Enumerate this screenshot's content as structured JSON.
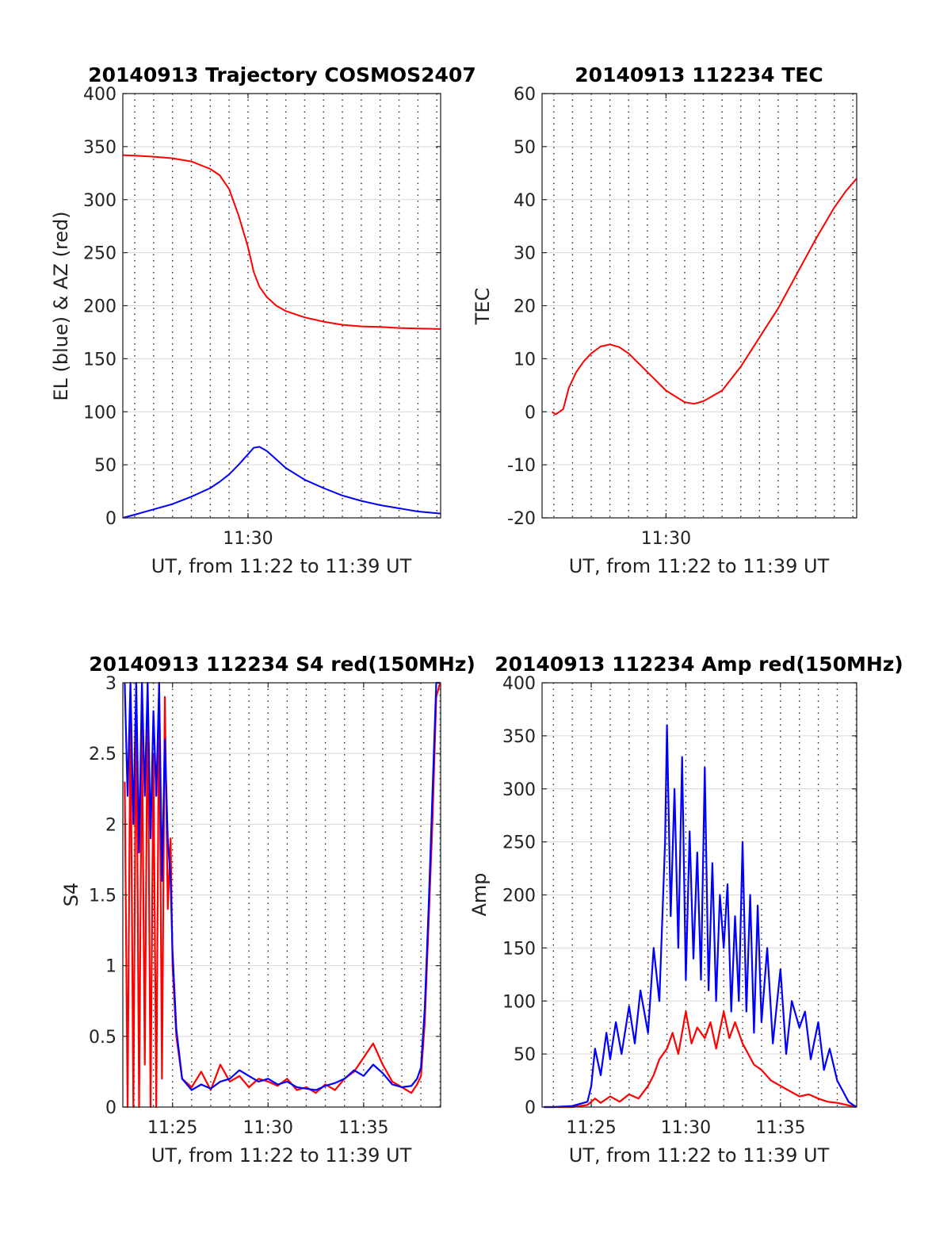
{
  "colors": {
    "red": "#ff0000",
    "blue": "#0000ff",
    "grid": "#d9d9d9"
  },
  "chart_data": [
    {
      "id": "traj",
      "type": "line",
      "title": "20140913 Trajectory COSMOS2407",
      "xlabel": "UT, from 11:22 to 11:39 UT",
      "ylabel": "EL (blue) & AZ (red)",
      "xlim": [
        11.37,
        28.2
      ],
      "ylim": [
        0,
        400
      ],
      "yticks": [
        "0",
        "50",
        "100",
        "150",
        "200",
        "250",
        "300",
        "350",
        "400"
      ],
      "xticks": [
        {
          "value": 18,
          "label": "11:30"
        }
      ],
      "grid": "on",
      "series": [
        {
          "color": "red",
          "x": [
            11.37,
            12,
            13,
            14,
            15,
            16,
            16.5,
            17,
            17.5,
            18,
            18.3,
            18.6,
            19,
            19.5,
            20,
            21,
            22,
            23,
            24,
            25,
            26,
            27,
            28.2
          ],
          "y": [
            342,
            341.5,
            340.5,
            339,
            336,
            329,
            323,
            310,
            285,
            255,
            232,
            218,
            208,
            200,
            195,
            189,
            185,
            182,
            180.5,
            180,
            179,
            178.5,
            178
          ]
        },
        {
          "color": "blue",
          "x": [
            11.37,
            12,
            13,
            14,
            15,
            16,
            16.5,
            17,
            17.5,
            17.8,
            18,
            18.3,
            18.6,
            19,
            19.5,
            20,
            21,
            22,
            23,
            24,
            25,
            26,
            27,
            28.2
          ],
          "y": [
            0,
            3,
            8,
            13,
            20,
            28,
            34,
            41,
            50,
            56,
            60,
            66,
            67,
            63,
            55,
            47,
            36,
            28,
            21,
            16,
            12,
            9,
            6,
            4
          ]
        }
      ]
    },
    {
      "id": "tec",
      "type": "line",
      "title": "20140913 112234 TEC",
      "xlabel": "UT, from 11:22 to 11:39 UT",
      "ylabel": "TEC",
      "xlim": [
        11.37,
        28.2
      ],
      "ylim": [
        -20,
        60
      ],
      "yticks": [
        "-20",
        "-10",
        "0",
        "10",
        "20",
        "30",
        "40",
        "50",
        "60"
      ],
      "xticks": [
        {
          "value": 18,
          "label": "11:30"
        }
      ],
      "grid": "on",
      "series": [
        {
          "color": "red",
          "x": [
            11.9,
            12.1,
            12.3,
            12.5,
            12.8,
            13.2,
            13.6,
            14,
            14.5,
            15,
            15.5,
            16,
            17,
            18,
            19,
            19.5,
            20,
            21,
            22,
            23,
            24,
            25,
            26,
            27,
            27.6,
            28.2
          ],
          "y": [
            0,
            -0.5,
            0,
            0.5,
            4.5,
            7.5,
            9.5,
            11,
            12.3,
            12.7,
            12.2,
            11,
            7.5,
            4,
            1.8,
            1.5,
            2,
            4,
            8.5,
            14,
            19.5,
            26,
            32.5,
            38.5,
            41.5,
            44
          ]
        }
      ]
    },
    {
      "id": "s4",
      "type": "line",
      "title": "20140913 112234 S4 red(150MHz)",
      "xlabel": "UT, from 11:22 to 11:39 UT",
      "ylabel": "S4",
      "xlim": [
        22.4,
        39.03
      ],
      "ylim": [
        0,
        3
      ],
      "yticks": [
        "0",
        "0.5",
        "1",
        "1.5",
        "2",
        "2.5",
        "3"
      ],
      "xticks": [
        {
          "value": 25,
          "label": "11:25"
        },
        {
          "value": 30,
          "label": "11:30"
        },
        {
          "value": 35,
          "label": "11:35"
        }
      ],
      "grid": "on",
      "series": [
        {
          "color": "red",
          "x": [
            22.5,
            22.65,
            22.8,
            22.95,
            23.1,
            23.25,
            23.4,
            23.55,
            23.7,
            23.85,
            24.0,
            24.15,
            24.3,
            24.45,
            24.6,
            24.75,
            24.9,
            25.0,
            25.2,
            25.5,
            26,
            26.5,
            27,
            27.5,
            28,
            28.5,
            29,
            29.5,
            30,
            30.5,
            31,
            31.5,
            32,
            32.5,
            33,
            33.5,
            34,
            34.5,
            35,
            35.5,
            36,
            36.5,
            37,
            37.5,
            37.8,
            38.0,
            38.2,
            38.4,
            38.6,
            38.8,
            39.0
          ],
          "y": [
            2.3,
            0,
            2.8,
            0,
            3,
            0,
            2.7,
            0.3,
            3,
            0,
            2.5,
            0,
            3,
            0.2,
            2.9,
            1.4,
            1.9,
            1.0,
            0.5,
            0.2,
            0.14,
            0.25,
            0.12,
            0.3,
            0.18,
            0.22,
            0.14,
            0.2,
            0.18,
            0.15,
            0.2,
            0.12,
            0.14,
            0.1,
            0.16,
            0.12,
            0.2,
            0.25,
            0.35,
            0.45,
            0.3,
            0.18,
            0.14,
            0.1,
            0.16,
            0.22,
            0.6,
            1.3,
            2.0,
            2.9,
            3.0
          ]
        },
        {
          "color": "blue",
          "x": [
            22.5,
            22.65,
            22.8,
            22.95,
            23.1,
            23.25,
            23.4,
            23.55,
            23.7,
            23.85,
            24.0,
            24.15,
            24.3,
            24.45,
            24.6,
            24.75,
            24.9,
            25.0,
            25.2,
            25.5,
            26,
            26.5,
            27,
            27.5,
            28,
            28.5,
            29,
            29.5,
            30,
            30.5,
            31,
            31.5,
            32,
            32.5,
            33,
            33.5,
            34,
            34.5,
            35,
            35.5,
            36,
            36.5,
            37,
            37.5,
            37.8,
            38.0,
            38.2,
            38.4,
            38.6,
            38.8,
            39.0
          ],
          "y": [
            3,
            2.2,
            3,
            2.0,
            3,
            1.8,
            3,
            2.2,
            3,
            1.9,
            2.8,
            2.2,
            3,
            1.6,
            2.6,
            1.9,
            1.6,
            1.1,
            0.55,
            0.2,
            0.12,
            0.16,
            0.13,
            0.18,
            0.2,
            0.26,
            0.22,
            0.18,
            0.2,
            0.16,
            0.18,
            0.14,
            0.13,
            0.12,
            0.15,
            0.17,
            0.2,
            0.26,
            0.22,
            0.3,
            0.24,
            0.16,
            0.14,
            0.15,
            0.2,
            0.28,
            0.7,
            1.4,
            2.2,
            3.0,
            3.0
          ]
        }
      ]
    },
    {
      "id": "amp",
      "type": "line",
      "title": "20140913 112234 Amp red(150MHz)",
      "xlabel": "UT, from 11:22 to 11:39 UT",
      "ylabel": "Amp",
      "xlim": [
        22.4,
        39.03
      ],
      "ylim": [
        0,
        400
      ],
      "yticks": [
        "0",
        "50",
        "100",
        "150",
        "200",
        "250",
        "300",
        "350",
        "400"
      ],
      "xticks": [
        {
          "value": 25,
          "label": "11:25"
        },
        {
          "value": 30,
          "label": "11:30"
        },
        {
          "value": 35,
          "label": "11:35"
        }
      ],
      "grid": "on",
      "series": [
        {
          "color": "red",
          "x": [
            22.5,
            23,
            24,
            24.8,
            25.2,
            25.5,
            26,
            26.5,
            27,
            27.5,
            28,
            28.3,
            28.6,
            29,
            29.3,
            29.6,
            30,
            30.3,
            30.6,
            31,
            31.3,
            31.6,
            32,
            32.3,
            32.6,
            33,
            33.3,
            33.6,
            34,
            34.5,
            35,
            35.5,
            36,
            36.5,
            37,
            37.5,
            38,
            38.5,
            39
          ],
          "y": [
            0,
            0,
            0,
            2,
            8,
            4,
            10,
            5,
            12,
            8,
            20,
            30,
            45,
            55,
            70,
            50,
            90,
            60,
            75,
            65,
            80,
            55,
            90,
            65,
            80,
            60,
            50,
            40,
            35,
            25,
            20,
            15,
            10,
            12,
            8,
            5,
            4,
            2,
            0
          ]
        },
        {
          "color": "blue",
          "x": [
            22.5,
            23,
            24,
            24.8,
            25,
            25.2,
            25.5,
            25.8,
            26,
            26.3,
            26.6,
            27,
            27.3,
            27.6,
            28,
            28.3,
            28.6,
            28.9,
            29,
            29.2,
            29.4,
            29.6,
            29.8,
            30,
            30.2,
            30.4,
            30.6,
            30.8,
            31,
            31.2,
            31.4,
            31.6,
            31.8,
            32,
            32.2,
            32.4,
            32.6,
            32.8,
            33,
            33.2,
            33.4,
            33.6,
            33.8,
            34,
            34.3,
            34.6,
            35,
            35.3,
            35.6,
            36,
            36.3,
            36.6,
            37,
            37.3,
            37.6,
            38,
            38.3,
            38.6,
            39
          ],
          "y": [
            0,
            0,
            1,
            5,
            20,
            55,
            30,
            70,
            45,
            80,
            50,
            95,
            60,
            110,
            70,
            150,
            100,
            250,
            360,
            180,
            300,
            150,
            330,
            120,
            260,
            140,
            240,
            120,
            320,
            110,
            230,
            100,
            200,
            150,
            210,
            90,
            180,
            100,
            250,
            90,
            200,
            70,
            190,
            80,
            150,
            60,
            130,
            50,
            100,
            75,
            90,
            45,
            80,
            35,
            55,
            25,
            15,
            5,
            0
          ]
        }
      ]
    }
  ]
}
